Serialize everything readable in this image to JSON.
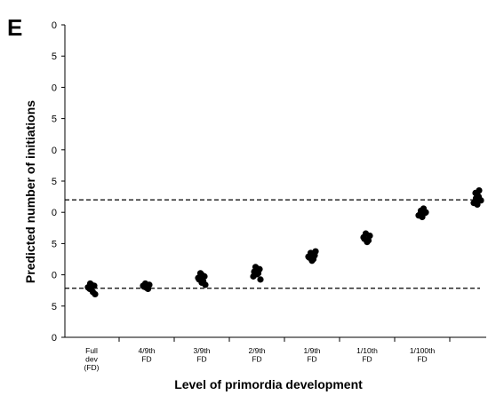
{
  "chart_data": {
    "type": "scatter",
    "panel_label": "E",
    "title": "",
    "xlabel": "Level of primordia development",
    "ylabel": "Predicted number of initiations",
    "ytick_labels": [
      "0",
      "5",
      "0",
      "5",
      "0",
      "5",
      "0",
      "5",
      "0",
      "5",
      "0"
    ],
    "ylim": [
      0,
      10
    ],
    "categories": [
      [
        "Full",
        "dev",
        "(FD)"
      ],
      [
        "4/9th",
        "FD"
      ],
      [
        "3/9th",
        "FD"
      ],
      [
        "2/9th",
        "FD"
      ],
      [
        "1/9th",
        "FD"
      ],
      [
        "1/10th",
        "FD"
      ],
      [
        "1/100th",
        "FD"
      ],
      []
    ],
    "series": [
      {
        "values": [
          [
            1.52,
            1.58,
            1.65,
            1.72,
            1.45,
            1.6,
            1.38,
            1.68,
            1.55
          ],
          [
            1.58,
            1.62,
            1.68,
            1.72,
            1.55,
            1.65
          ],
          [
            1.75,
            1.85,
            1.95,
            2.05,
            1.8,
            1.9,
            1.68,
            2.0
          ],
          [
            2.02,
            2.1,
            2.18,
            2.25,
            2.05,
            1.95,
            1.85,
            2.2
          ],
          [
            2.45,
            2.55,
            2.62,
            2.7,
            2.5,
            2.58,
            2.75
          ],
          [
            3.05,
            3.15,
            3.25,
            3.32,
            3.1,
            3.2
          ],
          [
            3.85,
            3.92,
            3.98,
            4.05,
            4.12,
            3.9,
            4.0
          ],
          [
            4.25,
            4.32,
            4.4,
            4.45,
            4.5,
            4.3,
            4.38,
            4.55,
            4.62,
            4.7
          ]
        ]
      }
    ],
    "reference_lines": [
      4.4,
      1.57
    ],
    "marker_color": "#000000",
    "line_style": "dashed",
    "grid": false,
    "legend": "none"
  }
}
